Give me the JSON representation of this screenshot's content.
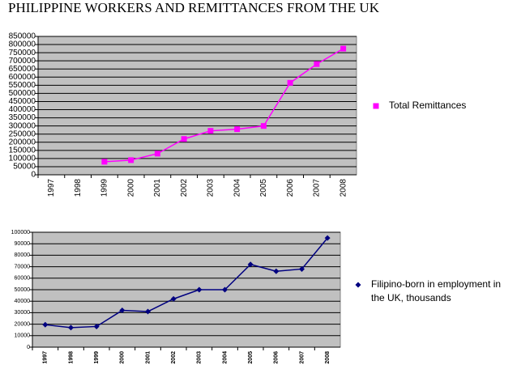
{
  "title": "PHILIPPINE WORKERS AND REMITTANCES FROM THE UK",
  "chart_data": [
    {
      "type": "line",
      "categories": [
        "1997",
        "1998",
        "1999",
        "2000",
        "2001",
        "2002",
        "2003",
        "2004",
        "2005",
        "2006",
        "2007",
        "2008"
      ],
      "series": [
        {
          "name": "Total Remittances",
          "color": "#ff00ff",
          "marker": "square",
          "values": [
            null,
            null,
            80000,
            90000,
            130000,
            220000,
            270000,
            280000,
            300000,
            565000,
            680000,
            775000
          ]
        }
      ],
      "ylim": [
        0,
        850000
      ],
      "yticks": [
        0,
        50000,
        100000,
        150000,
        200000,
        250000,
        300000,
        350000,
        400000,
        450000,
        500000,
        550000,
        600000,
        650000,
        700000,
        750000,
        800000,
        850000
      ],
      "grid": true,
      "legend": "right"
    },
    {
      "type": "line",
      "categories": [
        "1997",
        "1998",
        "1999",
        "2000",
        "2001",
        "2002",
        "2003",
        "2004",
        "2005",
        "2006",
        "2007",
        "2008"
      ],
      "series": [
        {
          "name": "Filipino-born in employment in the UK, thousands",
          "color": "#000080",
          "marker": "diamond",
          "values": [
            19500,
            17000,
            18000,
            32000,
            31000,
            42000,
            50000,
            50000,
            72000,
            66000,
            68000,
            95000
          ]
        }
      ],
      "ylim": [
        0,
        100000
      ],
      "yticks": [
        0,
        10000,
        20000,
        30000,
        40000,
        50000,
        60000,
        70000,
        80000,
        90000,
        100000
      ],
      "grid": true,
      "legend": "right"
    }
  ]
}
